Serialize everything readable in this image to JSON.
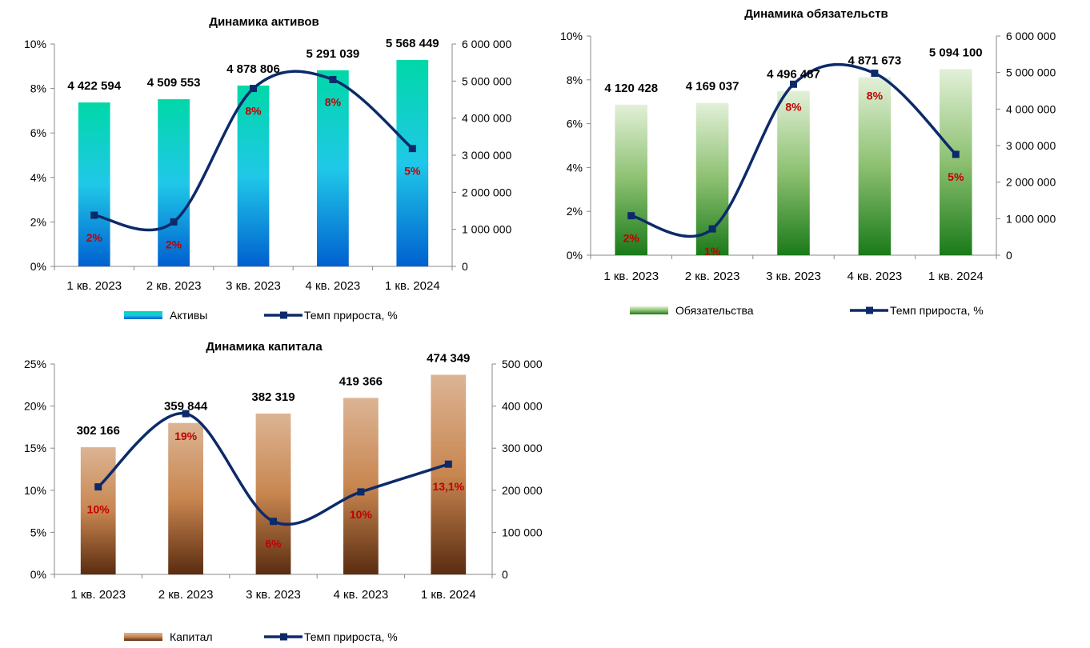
{
  "chart_data": [
    {
      "id": "assets",
      "type": "bar",
      "title": "Динамика активов",
      "categories": [
        "1 кв. 2023",
        "2 кв. 2023",
        "3 кв. 2023",
        "4 кв. 2023",
        "1 кв. 2024"
      ],
      "series": [
        {
          "name": "Активы",
          "axis": "right",
          "values": [
            4422594,
            4509553,
            4878806,
            5291039,
            5568449
          ],
          "labels": [
            "4 422 594",
            "4 509 553",
            "4 878 806",
            "5 291 039",
            "5 568 449"
          ]
        },
        {
          "name": "Темп прироста, %",
          "type": "line",
          "axis": "left",
          "values": [
            2.3,
            2.0,
            8.0,
            8.4,
            5.3
          ],
          "labels": [
            "2%",
            "2%",
            "8%",
            "8%",
            "5%"
          ]
        }
      ],
      "yleft_ticks": [
        "0%",
        "2%",
        "4%",
        "6%",
        "8%",
        "10%"
      ],
      "yleft_lim": [
        0,
        10
      ],
      "yright_ticks": [
        "0",
        "1 000 000",
        "2 000 000",
        "3 000 000",
        "4 000 000",
        "5 000 000",
        "6 000 000"
      ],
      "yright_lim": [
        0,
        6000000
      ],
      "colors": {
        "bar_top": "#00d8a8",
        "bar_mid": "#20c8e8",
        "bar_bottom": "#0060d0",
        "line": "#0c2a6a",
        "pct_label": "#c00000"
      },
      "legend_position": "bottom"
    },
    {
      "id": "liabilities",
      "type": "bar",
      "title": "Динамика обязательств",
      "categories": [
        "1 кв. 2023",
        "2 кв. 2023",
        "3 кв. 2023",
        "4 кв. 2023",
        "1 кв. 2024"
      ],
      "series": [
        {
          "name": "Обязательства",
          "axis": "right",
          "values": [
            4120428,
            4169037,
            4496487,
            4871673,
            5094100
          ],
          "labels": [
            "4 120 428",
            "4 169 037",
            "4 496 487",
            "4 871 673",
            "5 094 100"
          ]
        },
        {
          "name": "Темп прироста, %",
          "type": "line",
          "axis": "left",
          "values": [
            1.8,
            1.2,
            7.8,
            8.3,
            4.6
          ],
          "labels": [
            "2%",
            "1%",
            "8%",
            "8%",
            "5%"
          ]
        }
      ],
      "yleft_ticks": [
        "0%",
        "2%",
        "4%",
        "6%",
        "8%",
        "10%"
      ],
      "yleft_lim": [
        0,
        10
      ],
      "yright_ticks": [
        "0",
        "1 000 000",
        "2 000 000",
        "3 000 000",
        "4 000 000",
        "5 000 000",
        "6 000 000"
      ],
      "yright_lim": [
        0,
        6000000
      ],
      "colors": {
        "bar_top": "#e2f0d8",
        "bar_mid": "#8cc070",
        "bar_bottom": "#1a7a1a",
        "line": "#0c2a6a",
        "pct_label": "#c00000"
      },
      "legend_position": "bottom"
    },
    {
      "id": "capital",
      "type": "bar",
      "title": "Динамика капитала",
      "categories": [
        "1 кв. 2023",
        "2 кв. 2023",
        "3 кв. 2023",
        "4 кв. 2023",
        "1 кв. 2024"
      ],
      "series": [
        {
          "name": "Капитал",
          "axis": "right",
          "values": [
            302166,
            359844,
            382319,
            419366,
            474349
          ],
          "labels": [
            "302 166",
            "359 844",
            "382 319",
            "419 366",
            "474 349"
          ]
        },
        {
          "name": "Темп прироста, %",
          "type": "line",
          "axis": "left",
          "values": [
            10.4,
            19.1,
            6.3,
            9.8,
            13.1
          ],
          "labels": [
            "10%",
            "19%",
            "6%",
            "10%",
            "13,1%"
          ]
        }
      ],
      "yleft_ticks": [
        "0%",
        "5%",
        "10%",
        "15%",
        "20%",
        "25%"
      ],
      "yleft_lim": [
        0,
        25
      ],
      "yright_ticks": [
        "0",
        "100 000",
        "200 000",
        "300 000",
        "400 000",
        "500 000"
      ],
      "yright_lim": [
        0,
        500000
      ],
      "colors": {
        "bar_top": "#dcb494",
        "bar_mid": "#c88650",
        "bar_bottom": "#5a2c10",
        "line": "#0c2a6a",
        "pct_label": "#c00000"
      },
      "legend_position": "bottom"
    }
  ]
}
